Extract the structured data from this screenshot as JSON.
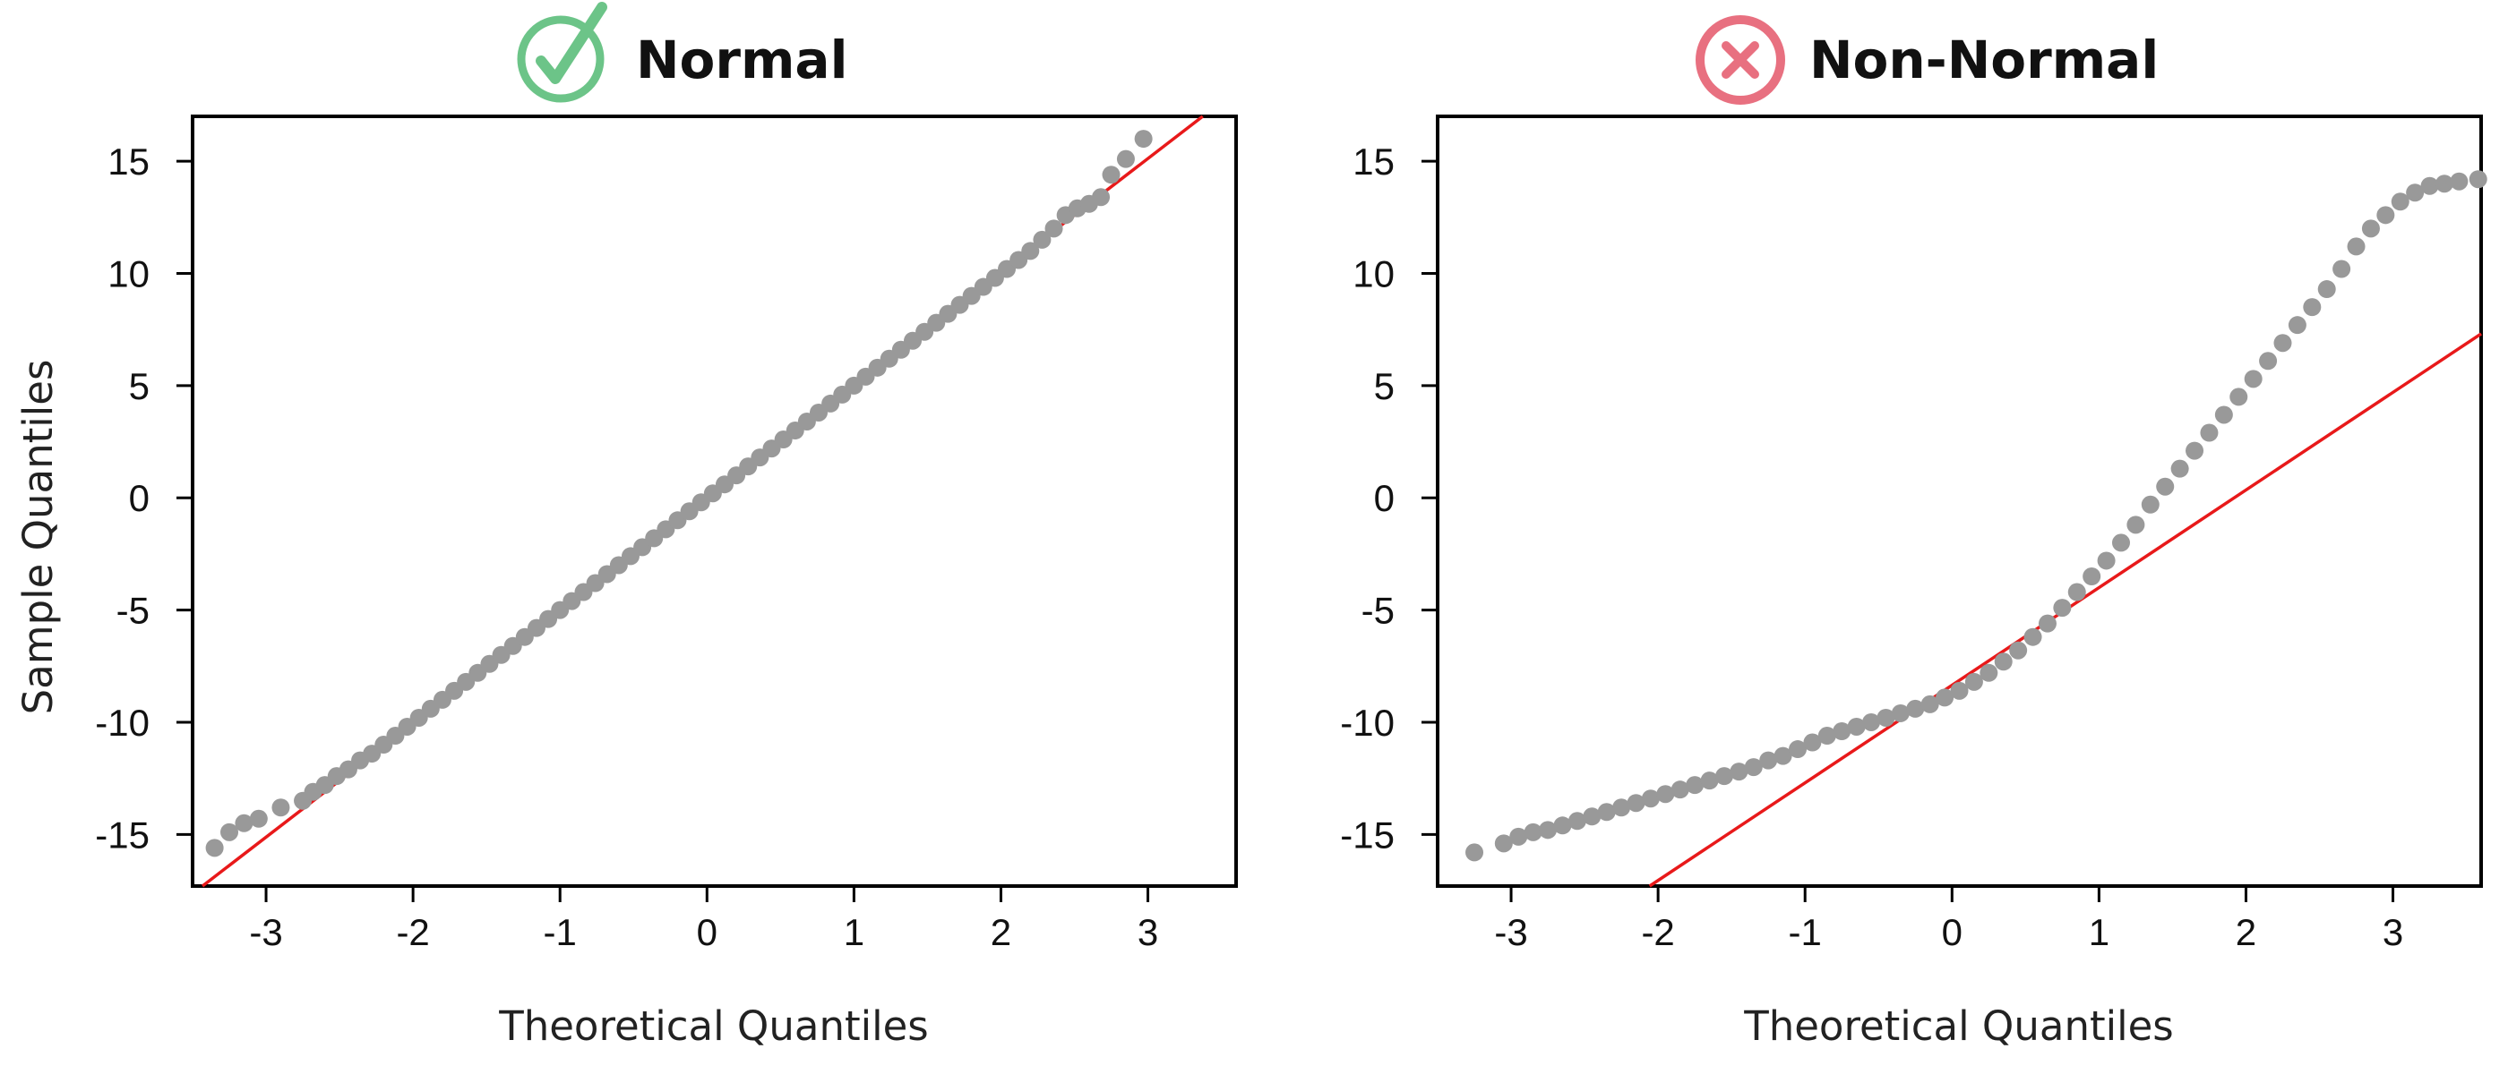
{
  "chart_data": [
    {
      "type": "scatter",
      "title": "Normal",
      "title_icon": "check-circle-icon",
      "title_icon_color": "#6cc488",
      "xlabel": "Theoretical Quantiles",
      "ylabel": "Sample Quantiles",
      "xlim": [
        -3.5,
        3.6
      ],
      "ylim": [
        -17.3,
        17.0
      ],
      "x_ticks": [
        -3,
        -2,
        -1,
        0,
        1,
        2,
        3
      ],
      "y_ticks": [
        -15,
        -10,
        -5,
        0,
        5,
        10,
        15
      ],
      "grid": false,
      "point_color": "#999999",
      "line_color": "#e8191a",
      "reference_line": {
        "slope": 5.04,
        "intercept": 0.0
      },
      "series": [
        {
          "x": [
            -3.35,
            -3.25,
            -3.15,
            -3.05,
            -2.9,
            -2.75,
            -2.68,
            -2.6,
            -2.52,
            -2.44,
            -2.36,
            -2.28,
            -2.2,
            -2.12,
            -2.04,
            -1.96,
            -1.88,
            -1.8,
            -1.72,
            -1.64,
            -1.56,
            -1.48,
            -1.4,
            -1.32,
            -1.24,
            -1.16,
            -1.08,
            -1.0,
            -0.92,
            -0.84,
            -0.76,
            -0.68,
            -0.6,
            -0.52,
            -0.44,
            -0.36,
            -0.28,
            -0.2,
            -0.12,
            -0.04,
            0.04,
            0.12,
            0.2,
            0.28,
            0.36,
            0.44,
            0.52,
            0.6,
            0.68,
            0.76,
            0.84,
            0.92,
            1.0,
            1.08,
            1.16,
            1.24,
            1.32,
            1.4,
            1.48,
            1.56,
            1.64,
            1.72,
            1.8,
            1.88,
            1.96,
            2.04,
            2.12,
            2.2,
            2.28,
            2.36,
            2.44,
            2.52,
            2.6,
            2.68,
            2.75,
            2.85,
            2.97
          ],
          "y": [
            -15.6,
            -14.9,
            -14.5,
            -14.3,
            -13.8,
            -13.5,
            -13.1,
            -12.8,
            -12.4,
            -12.1,
            -11.7,
            -11.4,
            -11.0,
            -10.6,
            -10.2,
            -9.8,
            -9.4,
            -9.0,
            -8.6,
            -8.2,
            -7.8,
            -7.4,
            -7.0,
            -6.6,
            -6.2,
            -5.8,
            -5.4,
            -5.0,
            -4.6,
            -4.2,
            -3.8,
            -3.4,
            -3.0,
            -2.6,
            -2.2,
            -1.8,
            -1.4,
            -1.0,
            -0.6,
            -0.2,
            0.2,
            0.6,
            1.0,
            1.4,
            1.8,
            2.2,
            2.6,
            3.0,
            3.4,
            3.8,
            4.2,
            4.6,
            5.0,
            5.4,
            5.8,
            6.2,
            6.6,
            7.0,
            7.4,
            7.8,
            8.2,
            8.6,
            9.0,
            9.4,
            9.8,
            10.2,
            10.6,
            11.0,
            11.5,
            12.0,
            12.6,
            12.9,
            13.1,
            13.4,
            14.4,
            15.1,
            16.0
          ]
        }
      ]
    },
    {
      "type": "scatter",
      "title": "Non-Normal",
      "title_icon": "x-circle-icon",
      "title_icon_color": "#e87080",
      "xlabel": "Theoretical Quantiles",
      "ylabel": "",
      "xlim": [
        -3.5,
        3.6
      ],
      "ylim": [
        -17.3,
        17.0
      ],
      "x_ticks": [
        -3,
        -2,
        -1,
        0,
        1,
        2,
        3
      ],
      "y_ticks": [
        -15,
        -10,
        -5,
        0,
        5,
        10,
        15
      ],
      "grid": false,
      "point_color": "#999999",
      "line_color": "#e8191a",
      "reference_line": {
        "slope": 4.35,
        "intercept": -8.35
      },
      "series": [
        {
          "x": [
            -3.25,
            -3.05,
            -2.95,
            -2.85,
            -2.75,
            -2.65,
            -2.55,
            -2.45,
            -2.35,
            -2.25,
            -2.15,
            -2.05,
            -1.95,
            -1.85,
            -1.75,
            -1.65,
            -1.55,
            -1.45,
            -1.35,
            -1.25,
            -1.15,
            -1.05,
            -0.95,
            -0.85,
            -0.75,
            -0.65,
            -0.55,
            -0.45,
            -0.35,
            -0.25,
            -0.15,
            -0.05,
            0.05,
            0.15,
            0.25,
            0.35,
            0.45,
            0.55,
            0.65,
            0.75,
            0.85,
            0.95,
            1.05,
            1.15,
            1.25,
            1.35,
            1.45,
            1.55,
            1.65,
            1.75,
            1.85,
            1.95,
            2.05,
            2.15,
            2.25,
            2.35,
            2.45,
            2.55,
            2.65,
            2.75,
            2.85,
            2.95,
            3.05,
            3.15,
            3.25,
            3.35,
            3.45,
            3.58
          ],
          "y": [
            -15.8,
            -15.4,
            -15.1,
            -14.9,
            -14.8,
            -14.6,
            -14.4,
            -14.2,
            -14.0,
            -13.8,
            -13.6,
            -13.4,
            -13.2,
            -13.0,
            -12.8,
            -12.6,
            -12.4,
            -12.2,
            -12.0,
            -11.7,
            -11.5,
            -11.2,
            -10.9,
            -10.6,
            -10.4,
            -10.2,
            -10.0,
            -9.8,
            -9.6,
            -9.4,
            -9.2,
            -8.9,
            -8.6,
            -8.2,
            -7.8,
            -7.3,
            -6.8,
            -6.2,
            -5.6,
            -4.9,
            -4.2,
            -3.5,
            -2.8,
            -2.0,
            -1.2,
            -0.3,
            0.5,
            1.3,
            2.1,
            2.9,
            3.7,
            4.5,
            5.3,
            6.1,
            6.9,
            7.7,
            8.5,
            9.3,
            10.2,
            11.2,
            12.0,
            12.6,
            13.2,
            13.6,
            13.9,
            14.0,
            14.1,
            14.2
          ]
        }
      ]
    }
  ]
}
